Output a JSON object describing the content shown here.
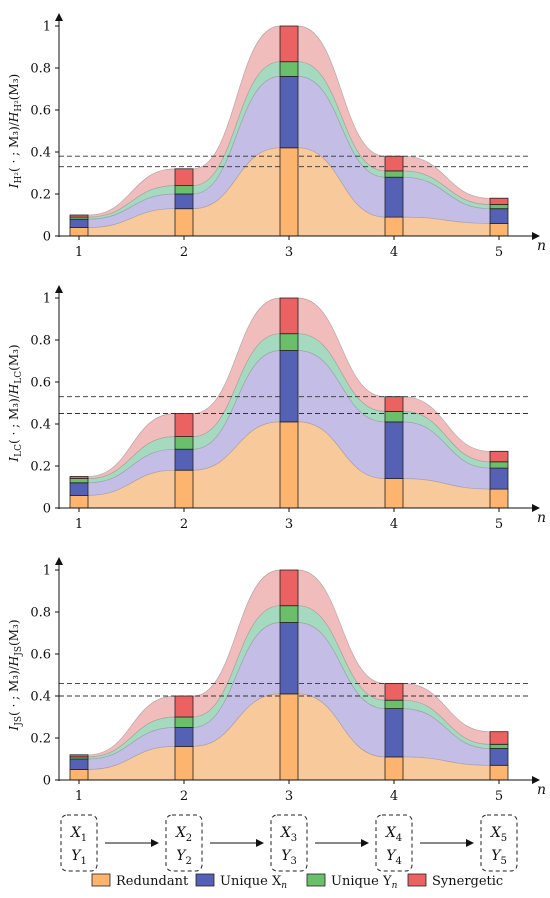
{
  "legend": [
    {
      "key": "red",
      "label": "Redundant",
      "color": "#FDB46F"
    },
    {
      "key": "ux",
      "label": "Unique X",
      "sub": "n",
      "color": "#5561B5"
    },
    {
      "key": "uy",
      "label": "Unique Y",
      "sub": "n",
      "color": "#6BBF6B"
    },
    {
      "key": "syn",
      "label": "Synergetic",
      "color": "#EB6262"
    }
  ],
  "chain": [
    {
      "x": "X",
      "y": "Y",
      "sub": "1"
    },
    {
      "x": "X",
      "y": "Y",
      "sub": "2"
    },
    {
      "x": "X",
      "y": "Y",
      "sub": "3"
    },
    {
      "x": "X",
      "y": "Y",
      "sub": "4"
    },
    {
      "x": "X",
      "y": "Y",
      "sub": "5"
    }
  ],
  "chart_data": [
    {
      "type": "bar",
      "stacked": true,
      "ylabel": "I_{H²}( · ; M₃)/H_{H²}(M₃)",
      "xlabel": "n",
      "x": [
        1,
        2,
        3,
        4,
        5
      ],
      "xticks": [
        "1",
        "2",
        "3",
        "4",
        "5"
      ],
      "ylim": [
        0,
        1
      ],
      "yticks": [
        "0",
        "0.2",
        "0.4",
        "0.6",
        "0.8",
        "1"
      ],
      "dashed_lines": [
        0.38,
        0.33
      ],
      "series": [
        {
          "name": "Redundant",
          "values": [
            0.04,
            0.13,
            0.42,
            0.09,
            0.06
          ]
        },
        {
          "name": "Unique X_n",
          "values": [
            0.04,
            0.07,
            0.34,
            0.19,
            0.07
          ]
        },
        {
          "name": "Unique Y_n",
          "values": [
            0.01,
            0.04,
            0.07,
            0.03,
            0.02
          ]
        },
        {
          "name": "Synergetic",
          "values": [
            0.01,
            0.08,
            0.17,
            0.07,
            0.03
          ]
        }
      ]
    },
    {
      "type": "bar",
      "stacked": true,
      "ylabel": "I_{LC}( · ; M₃)/H_{LC}(M₃)",
      "xlabel": "n",
      "x": [
        1,
        2,
        3,
        4,
        5
      ],
      "xticks": [
        "1",
        "2",
        "3",
        "4",
        "5"
      ],
      "ylim": [
        0,
        1
      ],
      "yticks": [
        "0",
        "0.2",
        "0.4",
        "0.6",
        "0.8",
        "1"
      ],
      "dashed_lines": [
        0.53,
        0.45
      ],
      "series": [
        {
          "name": "Redundant",
          "values": [
            0.06,
            0.18,
            0.41,
            0.14,
            0.09
          ]
        },
        {
          "name": "Unique X_n",
          "values": [
            0.06,
            0.1,
            0.34,
            0.27,
            0.1
          ]
        },
        {
          "name": "Unique Y_n",
          "values": [
            0.02,
            0.06,
            0.08,
            0.05,
            0.03
          ]
        },
        {
          "name": "Synergetic",
          "values": [
            0.01,
            0.11,
            0.17,
            0.07,
            0.05
          ]
        }
      ]
    },
    {
      "type": "bar",
      "stacked": true,
      "ylabel": "I_{JS}( · ; M₃)/H_{JS}(M₃)",
      "xlabel": "n",
      "x": [
        1,
        2,
        3,
        4,
        5
      ],
      "xticks": [
        "1",
        "2",
        "3",
        "4",
        "5"
      ],
      "ylim": [
        0,
        1
      ],
      "yticks": [
        "0",
        "0.2",
        "0.4",
        "0.6",
        "0.8",
        "1"
      ],
      "dashed_lines": [
        0.46,
        0.4
      ],
      "series": [
        {
          "name": "Redundant",
          "values": [
            0.05,
            0.16,
            0.41,
            0.11,
            0.07
          ]
        },
        {
          "name": "Unique X_n",
          "values": [
            0.05,
            0.09,
            0.34,
            0.23,
            0.08
          ]
        },
        {
          "name": "Unique Y_n",
          "values": [
            0.01,
            0.05,
            0.08,
            0.04,
            0.02
          ]
        },
        {
          "name": "Synergetic",
          "values": [
            0.01,
            0.1,
            0.17,
            0.08,
            0.06
          ]
        }
      ]
    }
  ]
}
